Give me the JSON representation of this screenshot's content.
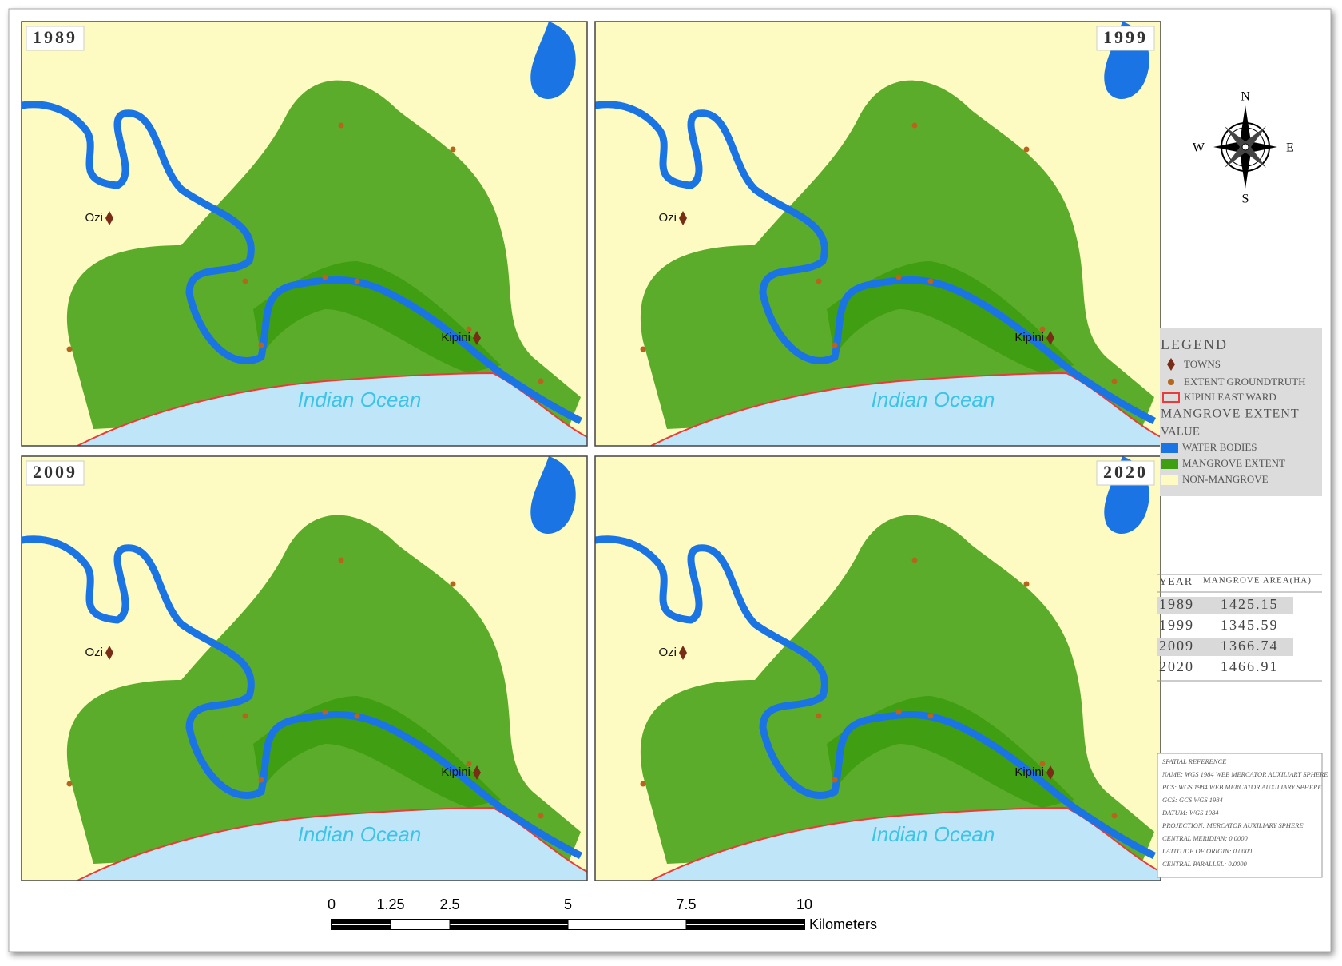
{
  "panels": [
    {
      "year": "1989",
      "towns": [
        "Ozi",
        "Kipini"
      ],
      "ocean": "Indian Ocean"
    },
    {
      "year": "1999",
      "towns": [
        "Ozi",
        "Kipini"
      ],
      "ocean": "Indian Ocean"
    },
    {
      "year": "2009",
      "towns": [
        "Ozi",
        "Kipini"
      ],
      "ocean": "Indian Ocean"
    },
    {
      "year": "2020",
      "towns": [
        "Ozi",
        "Kipini"
      ],
      "ocean": "Indian Ocean"
    }
  ],
  "compass": {
    "n": "N",
    "e": "E",
    "s": "S",
    "w": "W"
  },
  "legend": {
    "title": "LEGEND",
    "towns": "TOWNS",
    "groundtruth": "EXTENT GROUNDTRUTH",
    "ward": "KIPINI EAST WARD",
    "heading": "MANGROVE EXTENT",
    "value": "VALUE",
    "water": "WATER BODIES",
    "mangrove": "MANGROVE EXTENT",
    "non_mangrove": "NON-MANGROVE"
  },
  "table": {
    "header": [
      "YEAR",
      "MANGROVE AREA(HA)"
    ],
    "rows": [
      [
        "1989",
        "1425.15"
      ],
      [
        "1999",
        "1345.59"
      ],
      [
        "2009",
        "1366.74"
      ],
      [
        "2020",
        "1466.91"
      ]
    ]
  },
  "spatial_reference": [
    "SPATIAL REFERENCE",
    "NAME: WGS 1984 WEB MERCATOR AUXILIARY SPHERE",
    "PCS: WGS 1984 WEB MERCATOR AUXILIARY SPHERE",
    "GCS: GCS WGS 1984",
    "DATUM: WGS 1984",
    "PROJECTION: MERCATOR AUXILIARY SPHERE",
    "CENTRAL MERIDIAN: 0.0000",
    "LATITUDE OF ORIGIN: 0.0000",
    "CENTRAL PARALLEL: 0.0000"
  ],
  "scale_bar": {
    "ticks": [
      0,
      1.25,
      2.5,
      5,
      7.5,
      10
    ],
    "unit": "Kilometers"
  }
}
